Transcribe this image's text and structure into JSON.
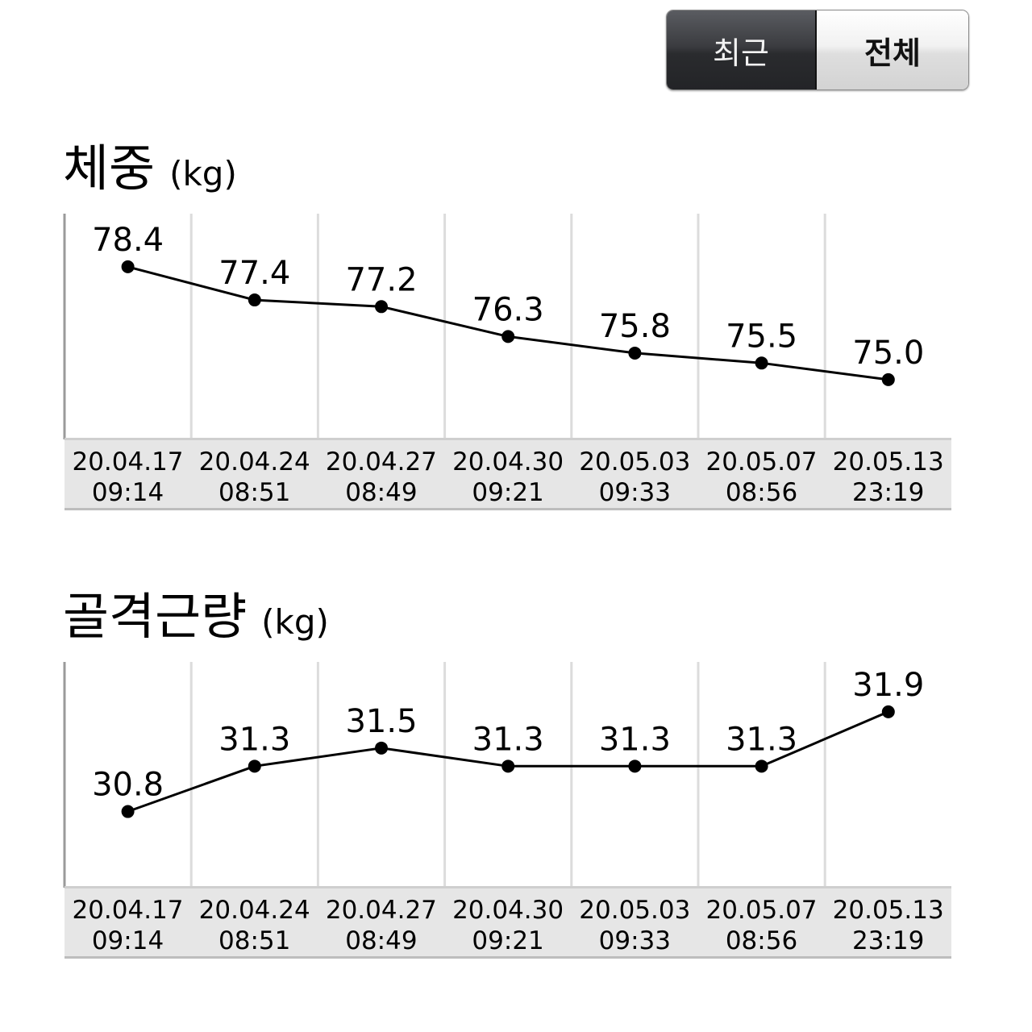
{
  "toggle": {
    "recent_label": "최근",
    "all_label": "전체",
    "active": "recent"
  },
  "colors": {
    "line": "#000000",
    "grid": "#dcdcdc",
    "axis": "#9a9a9a",
    "date_band": "#e6e6e6"
  },
  "chart_data": [
    {
      "type": "line",
      "title": "체중",
      "unit": "(kg)",
      "ylabel": "",
      "xlabel": "",
      "categories": [
        [
          "20.04.17",
          "09:14"
        ],
        [
          "20.04.24",
          "08:51"
        ],
        [
          "20.04.27",
          "08:49"
        ],
        [
          "20.04.30",
          "09:21"
        ],
        [
          "20.05.03",
          "09:33"
        ],
        [
          "20.05.07",
          "08:56"
        ],
        [
          "20.05.13",
          "23:19"
        ]
      ],
      "values": [
        78.4,
        77.4,
        77.2,
        76.3,
        75.8,
        75.5,
        75.0
      ],
      "value_labels": [
        "78.4",
        "77.4",
        "77.2",
        "76.3",
        "75.8",
        "75.5",
        "75.0"
      ],
      "ylim": [
        73.2,
        80.0
      ],
      "grid": "vertical"
    },
    {
      "type": "line",
      "title": "골격근량",
      "unit": "(kg)",
      "ylabel": "",
      "xlabel": "",
      "categories": [
        [
          "20.04.17",
          "09:14"
        ],
        [
          "20.04.24",
          "08:51"
        ],
        [
          "20.04.27",
          "08:49"
        ],
        [
          "20.04.30",
          "09:21"
        ],
        [
          "20.05.03",
          "09:33"
        ],
        [
          "20.05.07",
          "08:56"
        ],
        [
          "20.05.13",
          "23:19"
        ]
      ],
      "values": [
        30.8,
        31.3,
        31.5,
        31.3,
        31.3,
        31.3,
        31.9
      ],
      "value_labels": [
        "30.8",
        "31.3",
        "31.5",
        "31.3",
        "31.3",
        "31.3",
        "31.9"
      ],
      "ylim": [
        29.96,
        32.45
      ],
      "grid": "vertical"
    }
  ]
}
